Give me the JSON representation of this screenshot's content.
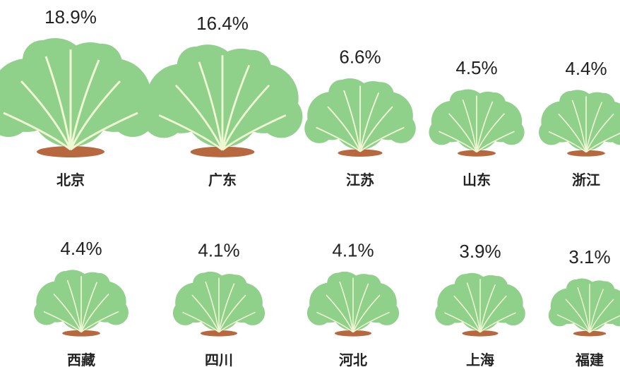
{
  "chart_data": {
    "type": "pictograph",
    "categories": [
      "北京",
      "广东",
      "江苏",
      "山东",
      "浙江",
      "西藏",
      "四川",
      "河北",
      "上海",
      "福建"
    ],
    "values": [
      18.9,
      16.4,
      6.6,
      4.5,
      4.4,
      4.4,
      4.1,
      4.1,
      3.9,
      3.1
    ],
    "value_labels": [
      "18.9%",
      "16.4%",
      "6.6%",
      "4.5%",
      "4.4%",
      "4.4%",
      "4.1%",
      "4.1%",
      "3.9%",
      "3.1%"
    ],
    "color": "#8fd08a"
  }
}
